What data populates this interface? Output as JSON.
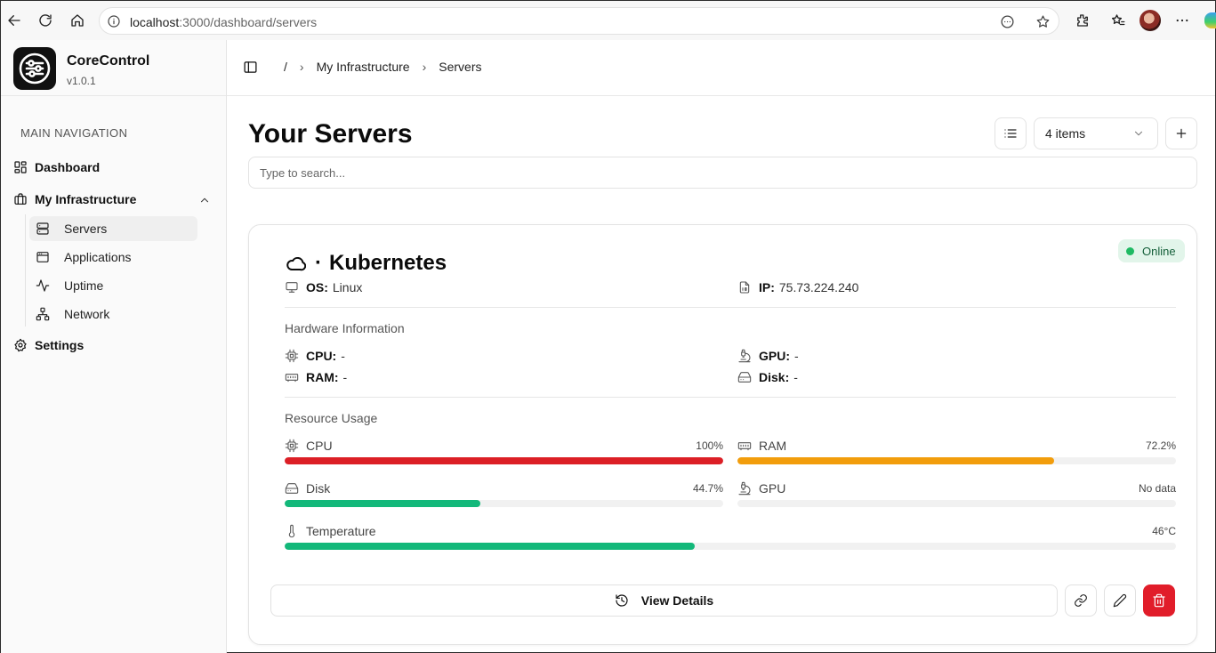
{
  "browser": {
    "url_host": "localhost",
    "url_path": ":3000/dashboard/servers"
  },
  "app": {
    "name": "CoreControl",
    "version": "v1.0.1"
  },
  "sidebar": {
    "section_label": "MAIN NAVIGATION",
    "items": [
      {
        "label": "Dashboard",
        "icon": "layout-grid-icon"
      },
      {
        "label": "My Infrastructure",
        "icon": "briefcase-icon"
      },
      {
        "label": "Settings",
        "icon": "gear-icon"
      }
    ],
    "sub_items": [
      {
        "label": "Servers",
        "icon": "server-icon",
        "active": true
      },
      {
        "label": "Applications",
        "icon": "app-window-icon"
      },
      {
        "label": "Uptime",
        "icon": "activity-icon"
      },
      {
        "label": "Network",
        "icon": "network-icon"
      }
    ]
  },
  "breadcrumb": {
    "root": "/",
    "items": [
      "My Infrastructure",
      "Servers"
    ]
  },
  "page": {
    "title": "Your Servers",
    "items_select": "4 items",
    "search_placeholder": "Type to search..."
  },
  "server": {
    "name": "Kubernetes",
    "title_separator": "·",
    "status": "Online",
    "os_label": "OS:",
    "os": "Linux",
    "ip_label": "IP:",
    "ip": "75.73.224.240",
    "hardware_title": "Hardware Information",
    "cpu_label": "CPU:",
    "cpu": "-",
    "gpu_label": "GPU:",
    "gpu": "-",
    "ram_label": "RAM:",
    "ram": "-",
    "disk_label": "Disk:",
    "disk": "-",
    "usage_title": "Resource Usage",
    "usage": {
      "cpu": {
        "label": "CPU",
        "value": "100%",
        "percent": 100,
        "color": "#dc1f26"
      },
      "ram": {
        "label": "RAM",
        "value": "72.2%",
        "percent": 72.2,
        "color": "#f29d0c"
      },
      "disk": {
        "label": "Disk",
        "value": "44.7%",
        "percent": 44.7,
        "color": "#13b87a"
      },
      "gpu": {
        "label": "GPU",
        "value": "No data",
        "percent": 0,
        "color": "#13b87a"
      },
      "temp": {
        "label": "Temperature",
        "value": "46°C",
        "percent": 46,
        "color": "#13b87a"
      }
    },
    "view_details": "View Details"
  },
  "colors": {
    "online": "#1fba63",
    "danger": "#e11d2a"
  }
}
